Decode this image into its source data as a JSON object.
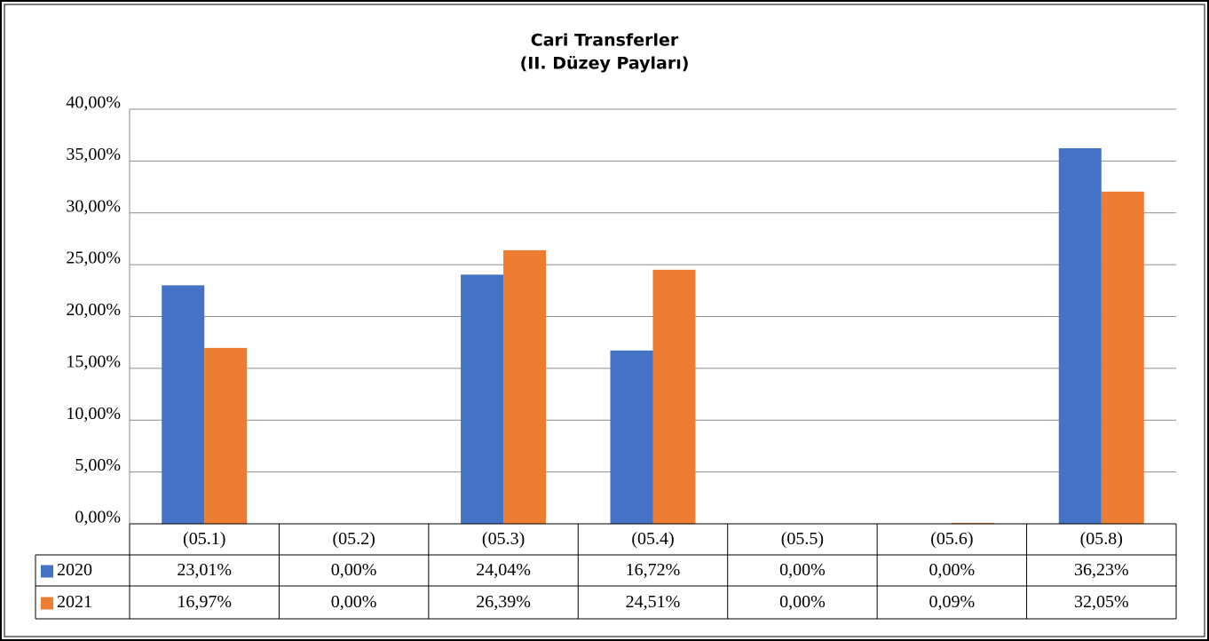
{
  "chart_data": {
    "type": "bar",
    "title": "Cari Transferler",
    "subtitle": "(II. Düzey Payları)",
    "categories": [
      "(05.1)",
      "(05.2)",
      "(05.3)",
      "(05.4)",
      "(05.5)",
      "(05.6)",
      "(05.8)"
    ],
    "series": [
      {
        "name": "2020",
        "color": "#4472c4",
        "values": [
          23.01,
          0,
          24.04,
          16.72,
          0,
          0,
          36.23
        ],
        "value_labels": [
          "23,01%",
          "0,00%",
          "24,04%",
          "16,72%",
          "0,00%",
          "0,00%",
          "36,23%"
        ]
      },
      {
        "name": "2021",
        "color": "#ed7d31",
        "values": [
          16.97,
          0,
          26.39,
          24.51,
          0,
          0.09,
          32.05
        ],
        "value_labels": [
          "16,97%",
          "0,00%",
          "26,39%",
          "24,51%",
          "0,00%",
          "0,09%",
          "32,05%"
        ]
      }
    ],
    "ylim": [
      0,
      40
    ],
    "yticks": [
      {
        "value": 0,
        "label": "0,00%"
      },
      {
        "value": 5,
        "label": "5,00%"
      },
      {
        "value": 10,
        "label": "10,00%"
      },
      {
        "value": 15,
        "label": "15,00%"
      },
      {
        "value": 20,
        "label": "20,00%"
      },
      {
        "value": 25,
        "label": "25,00%"
      },
      {
        "value": 30,
        "label": "30,00%"
      },
      {
        "value": 35,
        "label": "35,00%"
      },
      {
        "value": 40,
        "label": "40,00%"
      }
    ],
    "grid": true
  }
}
